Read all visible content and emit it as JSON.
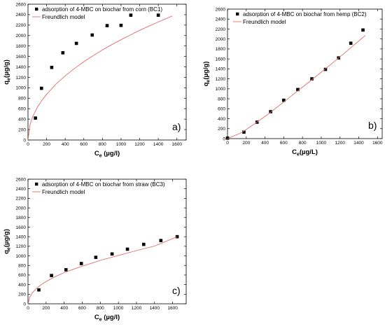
{
  "chart_data": [
    {
      "type": "scatter",
      "panel_label": "a)",
      "xlabel": {
        "main": "C",
        "sub": "e",
        "tail": " (µg/l)"
      },
      "ylabel": {
        "main": "q",
        "sub": "e",
        "tail": "(µg/g)"
      },
      "xlim": [
        0,
        1700
      ],
      "ylim": [
        0,
        2600
      ],
      "xticks": [
        0,
        200,
        400,
        600,
        800,
        1000,
        1200,
        1400,
        1600
      ],
      "yticks": [
        0,
        200,
        400,
        600,
        800,
        1000,
        1200,
        1400,
        1600,
        1800,
        2000,
        2200,
        2400,
        2600
      ],
      "legend": {
        "position": "top",
        "marker_label": "adsorption of 4-MBC on biochar from corn (BC1)",
        "line_label": "Freundlich model"
      },
      "series": [
        {
          "name": "adsorption of 4-MBC on biochar from corn (BC1)",
          "kind": "points",
          "color": "#000000",
          "x": [
            80,
            145,
            255,
            375,
            520,
            690,
            850,
            1000,
            1105,
            1400
          ],
          "y": [
            420,
            990,
            1390,
            1670,
            1850,
            2010,
            2190,
            2195,
            2390,
            2390
          ]
        },
        {
          "name": "Freundlich model",
          "kind": "line",
          "color": "#e06d6d",
          "x": [
            0,
            20,
            50,
            100,
            150,
            200,
            300,
            400,
            500,
            600,
            700,
            800,
            900,
            1000,
            1100,
            1200,
            1300,
            1400,
            1550
          ],
          "y": [
            0,
            285,
            445,
            625,
            760,
            875,
            1070,
            1230,
            1370,
            1500,
            1615,
            1725,
            1825,
            1920,
            2010,
            2100,
            2180,
            2260,
            2375
          ]
        }
      ]
    },
    {
      "type": "scatter",
      "panel_label": "b)",
      "xlabel": {
        "main": "C",
        "sub": "e",
        "tail": "(µg/L)"
      },
      "ylabel": {
        "main": "q",
        "sub": "e",
        "tail": "(µg/g)"
      },
      "xlim": [
        0,
        1650
      ],
      "ylim": [
        0,
        2600
      ],
      "xticks": [
        0,
        200,
        400,
        600,
        800,
        1000,
        1200,
        1400,
        1600
      ],
      "yticks": [
        0,
        200,
        400,
        600,
        800,
        1000,
        1200,
        1400,
        1600,
        1800,
        2000,
        2200,
        2400,
        2600
      ],
      "legend": {
        "position": "top",
        "marker_label": "adsorption of 4-MBC on biochar from hemp (BC2)",
        "line_label": "Freundlich model"
      },
      "series": [
        {
          "name": "adsorption of 4-MBC on biochar from hemp (BC2)",
          "kind": "points",
          "color": "#000000",
          "x": [
            0,
            175,
            315,
            460,
            600,
            750,
            900,
            1045,
            1185,
            1315,
            1445
          ],
          "y": [
            10,
            130,
            330,
            540,
            770,
            985,
            1200,
            1390,
            1620,
            1915,
            2180
          ]
        },
        {
          "name": "Freundlich model",
          "kind": "line",
          "color": "#e06d6d",
          "x": [
            0,
            150,
            300,
            450,
            600,
            750,
            900,
            1050,
            1200,
            1350,
            1470
          ],
          "y": [
            0,
            120,
            310,
            515,
            735,
            960,
            1180,
            1410,
            1640,
            1880,
            2070
          ]
        }
      ]
    },
    {
      "type": "scatter",
      "panel_label": "c)",
      "xlabel": {
        "main": "C",
        "sub": "e",
        "tail": " (µg/l)"
      },
      "ylabel": {
        "main": "q",
        "sub": "e",
        "tail": "(µg/g)"
      },
      "xlim": [
        0,
        1750
      ],
      "ylim": [
        0,
        2600
      ],
      "xticks": [
        0,
        200,
        400,
        600,
        800,
        1000,
        1200,
        1400,
        1600
      ],
      "yticks": [
        0,
        200,
        400,
        600,
        800,
        1000,
        1200,
        1400,
        1600,
        1800,
        2000,
        2200,
        2400,
        2600
      ],
      "legend": {
        "position": "top",
        "marker_label": "adsorption of 4-MBC on biochar from straw (BC3)",
        "line_label": "Freundlich model"
      },
      "series": [
        {
          "name": "adsorption of 4-MBC on biochar from straw (BC3)",
          "kind": "points",
          "color": "#000000",
          "x": [
            120,
            260,
            420,
            590,
            750,
            930,
            1100,
            1280,
            1470,
            1650
          ],
          "y": [
            290,
            590,
            710,
            840,
            970,
            1040,
            1140,
            1240,
            1320,
            1400
          ]
        },
        {
          "name": "Freundlich model",
          "kind": "line",
          "color": "#e06d6d",
          "x": [
            0,
            20,
            50,
            100,
            150,
            200,
            300,
            400,
            500,
            600,
            800,
            1000,
            1200,
            1400,
            1650
          ],
          "y": [
            0,
            140,
            235,
            330,
            405,
            465,
            565,
            650,
            720,
            785,
            905,
            1010,
            1110,
            1205,
            1400
          ]
        }
      ]
    }
  ]
}
